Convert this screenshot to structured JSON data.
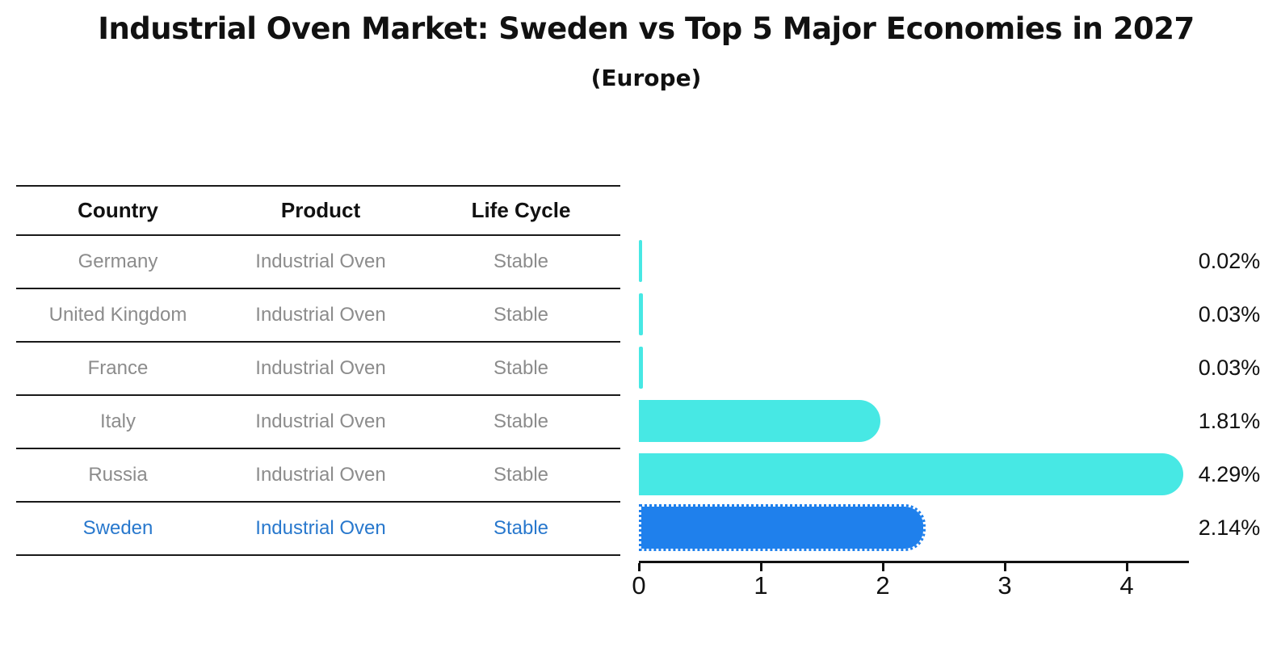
{
  "title": "Industrial Oven Market: Sweden vs Top 5 Major Economies in 2027",
  "subtitle": "(Europe)",
  "table": {
    "headers": [
      "Country",
      "Product",
      "Life Cycle"
    ],
    "rows": [
      {
        "country": "Germany",
        "product": "Industrial Oven",
        "life_cycle": "Stable",
        "highlight": false
      },
      {
        "country": "United Kingdom",
        "product": "Industrial Oven",
        "life_cycle": "Stable",
        "highlight": false
      },
      {
        "country": "France",
        "product": "Industrial Oven",
        "life_cycle": "Stable",
        "highlight": false
      },
      {
        "country": "Italy",
        "product": "Industrial Oven",
        "life_cycle": "Stable",
        "highlight": false
      },
      {
        "country": "Russia",
        "product": "Industrial Oven",
        "life_cycle": "Stable",
        "highlight": false
      },
      {
        "country": "Sweden",
        "product": "Industrial Oven",
        "life_cycle": "Stable",
        "highlight": true
      }
    ]
  },
  "chart_data": {
    "type": "bar",
    "orientation": "horizontal",
    "title": "Industrial Oven Market: Sweden vs Top 5 Major Economies in 2027 (Europe)",
    "categories": [
      "Germany",
      "United Kingdom",
      "France",
      "Italy",
      "Russia",
      "Sweden"
    ],
    "values": [
      0.02,
      0.03,
      0.03,
      1.81,
      4.29,
      2.14
    ],
    "value_labels": [
      "0.02%",
      "0.03%",
      "0.03%",
      "1.81%",
      "4.29%",
      "2.14%"
    ],
    "xlabel": "",
    "ylabel": "",
    "xlim": [
      0,
      4.51
    ],
    "x_ticks": [
      0,
      1,
      2,
      3,
      4
    ],
    "grid": false,
    "legend": false,
    "bar_color": "#47E8E4",
    "highlight_color": "#1F80EC",
    "highlight_index": 5,
    "highlight_style": "dotted-border",
    "bar_end": "rounded"
  },
  "colors": {
    "row_text": "#8C8C8C",
    "highlight_text": "#2878CD",
    "header_text": "#111111",
    "line_color": "#1a1a1a",
    "bar_cyan": "#47E8E4",
    "bar_blue": "#1F80EC"
  }
}
